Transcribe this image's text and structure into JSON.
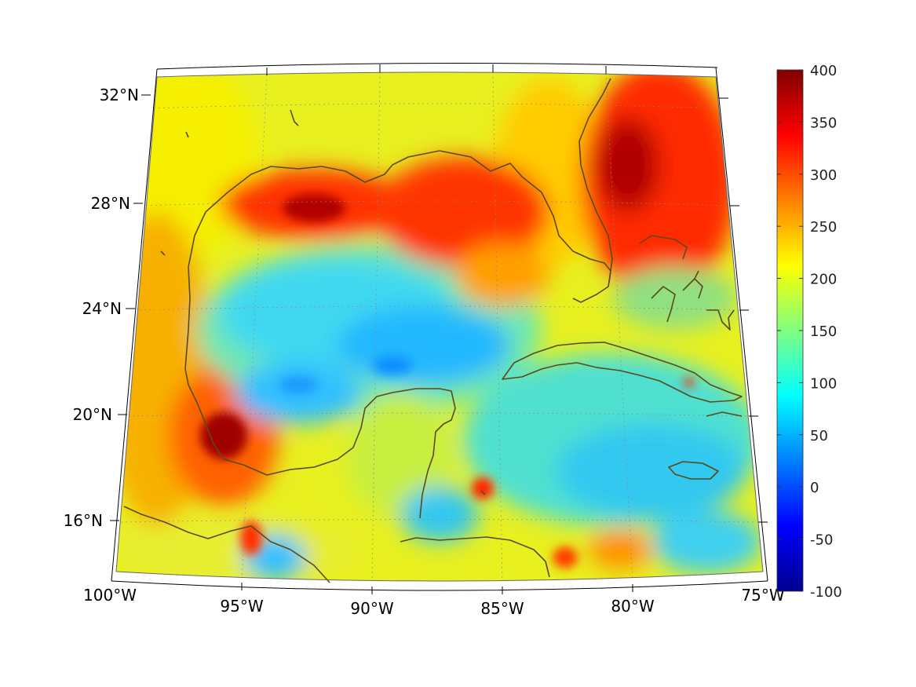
{
  "map": {
    "longitude_labels": [
      "100°W",
      "95°W",
      "90°W",
      "85°W",
      "80°W",
      "75°W"
    ],
    "latitude_labels": [
      "32°N",
      "28°N",
      "24°N",
      "20°N",
      "16°N"
    ],
    "extent": {
      "lon": [
        -100,
        -75
      ],
      "lat": [
        14,
        33
      ]
    },
    "coast_color": "#5a4a1a",
    "grid": "dotted"
  },
  "colorbar": {
    "ticks": [
      "400",
      "350",
      "300",
      "250",
      "200",
      "150",
      "100",
      "50",
      "0",
      "-50",
      "-100"
    ],
    "range": [
      -100,
      400
    ],
    "colormap": "jet"
  }
}
